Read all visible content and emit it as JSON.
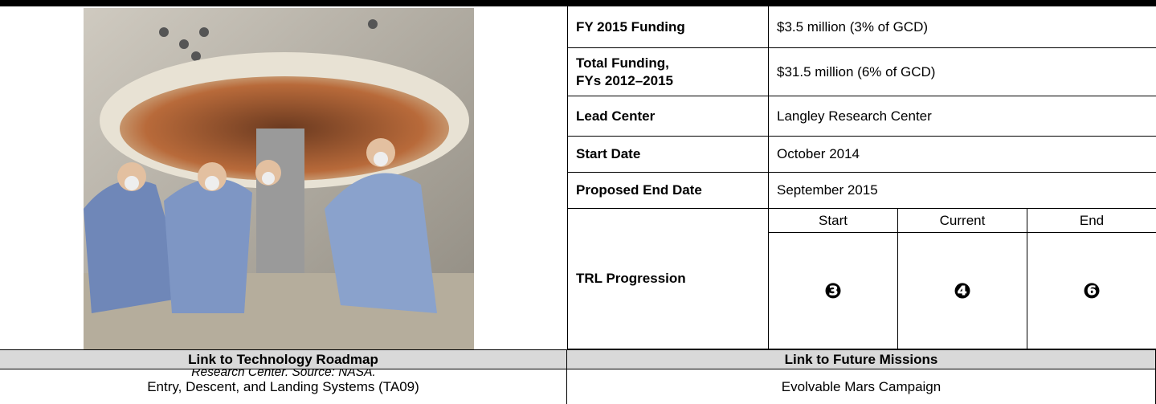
{
  "image": {
    "caption": "Engineers check the inflatable decelerator after testing in vacuum conditions at the Langley Research Center.  Source: NASA."
  },
  "table": {
    "rows": [
      {
        "label": "FY 2015 Funding",
        "value": "$3.5 million (3% of GCD)"
      },
      {
        "label": "Total Funding,\nFYs 2012–2015",
        "value": "$31.5 million (6% of GCD)"
      },
      {
        "label": "Lead Center",
        "value": "Langley Research Center"
      },
      {
        "label": "Start Date",
        "value": "October 2014"
      },
      {
        "label": "Proposed End Date",
        "value": "September 2015"
      }
    ],
    "trl": {
      "label": "TRL Progression",
      "headers": [
        "Start",
        "Current",
        "End"
      ],
      "values": [
        "❸",
        "❹",
        "❻"
      ]
    }
  },
  "links": {
    "headers": [
      "Link to Technology Roadmap",
      "Link to Future Missions"
    ],
    "values": [
      "Entry, Descent, and Landing Systems (TA09)",
      "Evolvable Mars Campaign"
    ]
  }
}
